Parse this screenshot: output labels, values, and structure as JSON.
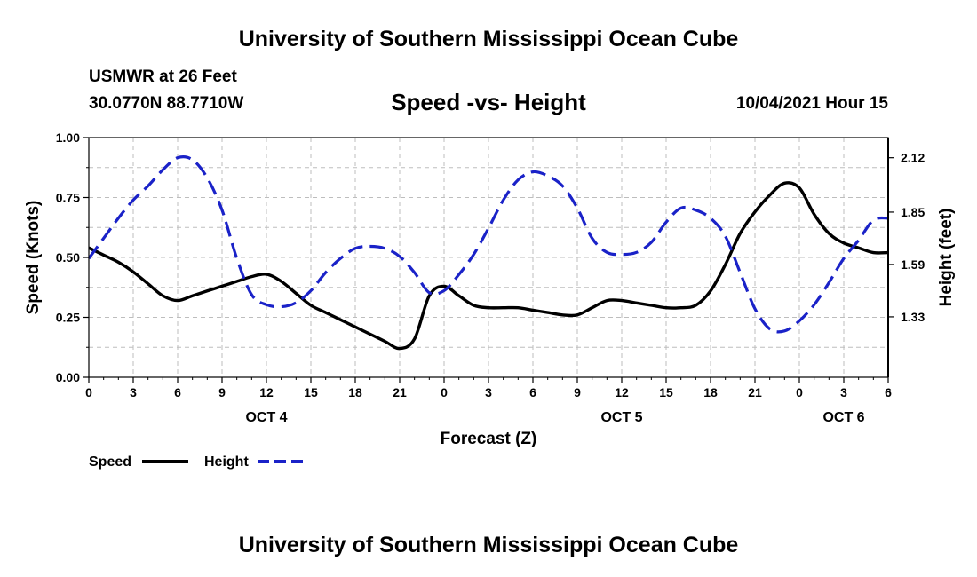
{
  "header": {
    "title": "University of Southern Mississippi Ocean Cube",
    "station": "USMWR at 26 Feet",
    "coordinates": "30.0770N  88.7710W",
    "date_time": "10/04/2021 Hour 15",
    "footer_title": "University of Southern Mississippi Ocean Cube"
  },
  "chart_data": {
    "type": "line",
    "title": "Speed -vs- Height",
    "xlabel": "Forecast (Z)",
    "ylabel_left": "Speed (Knots)",
    "ylabel_right": "Height (feet)",
    "x_hours": [
      0,
      1,
      2,
      3,
      4,
      5,
      6,
      7,
      8,
      9,
      10,
      11,
      12,
      13,
      14,
      15,
      16,
      17,
      18,
      19,
      20,
      21,
      22,
      23,
      24,
      25,
      26,
      27,
      28,
      29,
      30,
      31,
      32,
      33,
      34,
      35,
      36,
      37,
      38,
      39,
      40,
      41,
      42,
      43,
      44,
      45,
      46,
      47,
      48,
      49,
      50,
      51,
      52,
      53,
      54
    ],
    "x_tick_positions": [
      0,
      3,
      6,
      9,
      12,
      15,
      18,
      21,
      24,
      27,
      30,
      33,
      36,
      39,
      42,
      45,
      48,
      51,
      54
    ],
    "x_tick_labels": [
      "0",
      "3",
      "6",
      "9",
      "12",
      "15",
      "18",
      "21",
      "0",
      "3",
      "6",
      "9",
      "12",
      "15",
      "18",
      "21",
      "0",
      "3",
      "6"
    ],
    "day_labels": [
      {
        "position": 12,
        "text": "OCT 4"
      },
      {
        "position": 36,
        "text": "OCT 5"
      },
      {
        "position": 51,
        "text": "OCT 6"
      }
    ],
    "grid": true,
    "left_axis": {
      "ylim": [
        0,
        1.0
      ],
      "ticks": [
        0.0,
        0.25,
        0.5,
        0.75,
        1.0
      ],
      "tick_labels": [
        "0.00",
        "0.25",
        "0.50",
        "0.75",
        "1.00"
      ]
    },
    "right_axis": {
      "ylim": [
        1.03,
        2.22
      ],
      "ticks": [
        1.33,
        1.59,
        1.85,
        2.12
      ],
      "tick_labels": [
        "1.33",
        "1.59",
        "1.85",
        "2.12"
      ]
    },
    "series": [
      {
        "name": "Speed",
        "axis": "left",
        "color": "#000000",
        "dash": "solid",
        "values": [
          0.54,
          0.51,
          0.48,
          0.44,
          0.39,
          0.34,
          0.32,
          0.34,
          0.36,
          0.38,
          0.4,
          0.42,
          0.43,
          0.4,
          0.35,
          0.3,
          0.27,
          0.24,
          0.21,
          0.18,
          0.15,
          0.12,
          0.16,
          0.34,
          0.38,
          0.34,
          0.3,
          0.29,
          0.29,
          0.29,
          0.28,
          0.27,
          0.26,
          0.26,
          0.29,
          0.32,
          0.32,
          0.31,
          0.3,
          0.29,
          0.29,
          0.3,
          0.36,
          0.47,
          0.6,
          0.69,
          0.76,
          0.81,
          0.79,
          0.68,
          0.6,
          0.56,
          0.54,
          0.52,
          0.52
        ]
      },
      {
        "name": "Height",
        "axis": "right",
        "color": "#1a22c8",
        "dash": "dashed",
        "values": [
          1.62,
          1.72,
          1.82,
          1.91,
          1.98,
          2.06,
          2.12,
          2.11,
          2.02,
          1.86,
          1.62,
          1.44,
          1.39,
          1.38,
          1.4,
          1.46,
          1.55,
          1.62,
          1.67,
          1.68,
          1.67,
          1.63,
          1.55,
          1.45,
          1.46,
          1.54,
          1.64,
          1.77,
          1.91,
          2.01,
          2.05,
          2.03,
          1.98,
          1.87,
          1.72,
          1.65,
          1.64,
          1.65,
          1.7,
          1.8,
          1.87,
          1.86,
          1.82,
          1.73,
          1.55,
          1.37,
          1.27,
          1.26,
          1.31,
          1.39,
          1.5,
          1.62,
          1.71,
          1.81,
          1.82
        ]
      }
    ],
    "legend_placement": "bottom-left"
  }
}
